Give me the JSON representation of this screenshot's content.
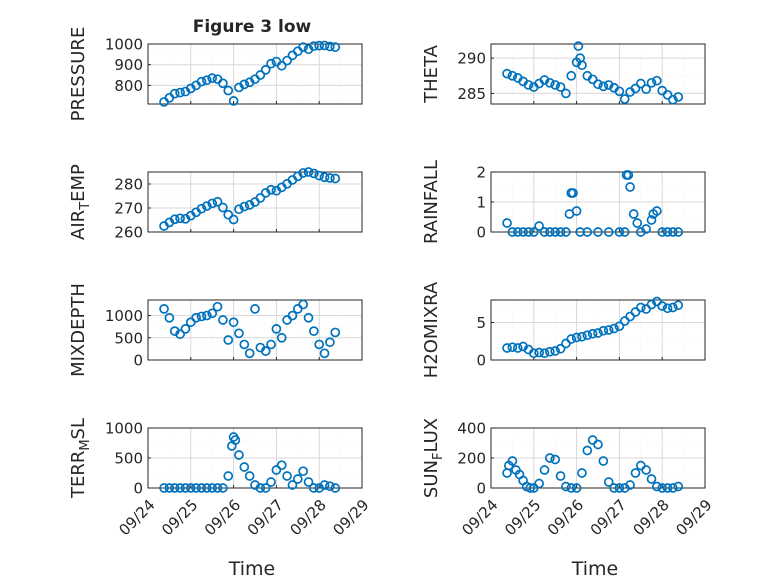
{
  "figure": {
    "title": "Figure 3 low",
    "xlabel": "Time",
    "marker_color": "#0072BD",
    "grid_color": "#d9d9d9",
    "axes_color": "#262626"
  },
  "chart_data": [
    {
      "type": "scatter",
      "name": "pressure",
      "ylabel": "PRESSURE",
      "ylim": [
        710,
        1000
      ],
      "yticks": [
        800,
        900,
        1000
      ],
      "yticklabels": [
        "800",
        "900",
        "1000"
      ],
      "xlim": [
        "09/24 00:00",
        "09/29 00:00"
      ],
      "x": [
        "09/24 09:00",
        "09/24 12:00",
        "09/24 15:00",
        "09/24 18:00",
        "09/24 21:00",
        "09/25 00:00",
        "09/25 03:00",
        "09/25 06:00",
        "09/25 09:00",
        "09/25 12:00",
        "09/25 15:00",
        "09/25 18:00",
        "09/25 21:00",
        "09/26 00:00",
        "09/26 03:00",
        "09/26 06:00",
        "09/26 09:00",
        "09/26 12:00",
        "09/26 15:00",
        "09/26 18:00",
        "09/26 21:00",
        "09/27 00:00",
        "09/27 03:00",
        "09/27 06:00",
        "09/27 09:00",
        "09/27 12:00",
        "09/27 15:00",
        "09/27 18:00",
        "09/27 21:00",
        "09/28 00:00",
        "09/28 03:00",
        "09/28 06:00",
        "09/28 09:00"
      ],
      "y": [
        720,
        740,
        760,
        765,
        770,
        785,
        800,
        818,
        825,
        835,
        830,
        810,
        775,
        725,
        790,
        805,
        815,
        830,
        850,
        875,
        905,
        915,
        895,
        920,
        945,
        965,
        985,
        975,
        990,
        992,
        993,
        988,
        985
      ]
    },
    {
      "type": "scatter",
      "name": "theta",
      "ylabel": "THETA",
      "ylim": [
        283.5,
        292
      ],
      "yticks": [
        285,
        290
      ],
      "yticklabels": [
        "285",
        "290"
      ],
      "xlim": [
        "09/24 00:00",
        "09/29 00:00"
      ],
      "x": [
        "09/24 09:00",
        "09/24 12:00",
        "09/24 15:00",
        "09/24 18:00",
        "09/24 21:00",
        "09/25 00:00",
        "09/25 03:00",
        "09/25 06:00",
        "09/25 09:00",
        "09/25 12:00",
        "09/25 15:00",
        "09/25 18:00",
        "09/25 21:00",
        "09/26 00:00",
        "09/26 01:00",
        "09/26 02:00",
        "09/26 03:00",
        "09/26 06:00",
        "09/26 09:00",
        "09/26 12:00",
        "09/26 15:00",
        "09/26 18:00",
        "09/26 21:00",
        "09/27 00:00",
        "09/27 03:00",
        "09/27 06:00",
        "09/27 09:00",
        "09/27 12:00",
        "09/27 15:00",
        "09/27 18:00",
        "09/27 21:00",
        "09/28 00:00",
        "09/28 03:00",
        "09/28 06:00",
        "09/28 09:00"
      ],
      "y": [
        287.8,
        287.5,
        287.2,
        286.7,
        286.2,
        285.9,
        286.4,
        286.9,
        286.5,
        286.2,
        285.9,
        285.0,
        287.5,
        289.4,
        291.7,
        290.0,
        289.0,
        287.5,
        287.0,
        286.3,
        286.0,
        286.2,
        285.8,
        285.3,
        284.2,
        285.2,
        285.7,
        286.4,
        285.6,
        286.5,
        286.8,
        285.4,
        284.8,
        284.1,
        284.5
      ]
    },
    {
      "type": "scatter",
      "name": "air_temp",
      "ylabel": "AIR_TEMP",
      "ylim": [
        260,
        285
      ],
      "yticks": [
        260,
        270,
        280
      ],
      "yticklabels": [
        "260",
        "270",
        "280"
      ],
      "xlim": [
        "09/24 00:00",
        "09/29 00:00"
      ],
      "x": [
        "09/24 09:00",
        "09/24 12:00",
        "09/24 15:00",
        "09/24 18:00",
        "09/24 21:00",
        "09/25 00:00",
        "09/25 03:00",
        "09/25 06:00",
        "09/25 09:00",
        "09/25 12:00",
        "09/25 15:00",
        "09/25 18:00",
        "09/25 21:00",
        "09/26 00:00",
        "09/26 03:00",
        "09/26 06:00",
        "09/26 09:00",
        "09/26 12:00",
        "09/26 15:00",
        "09/26 18:00",
        "09/26 21:00",
        "09/27 00:00",
        "09/27 03:00",
        "09/27 06:00",
        "09/27 09:00",
        "09/27 12:00",
        "09/27 15:00",
        "09/27 18:00",
        "09/27 21:00",
        "09/28 00:00",
        "09/28 03:00",
        "09/28 06:00",
        "09/28 09:00"
      ],
      "y": [
        262.5,
        264.0,
        265.3,
        265.7,
        265.5,
        266.8,
        268.2,
        269.7,
        270.8,
        271.9,
        272.6,
        270.2,
        267.2,
        265.2,
        269.5,
        270.6,
        271.3,
        272.5,
        274.2,
        276.3,
        277.6,
        277.2,
        278.6,
        280.1,
        281.7,
        283.2,
        284.6,
        285.0,
        284.4,
        283.5,
        282.8,
        282.5,
        282.3
      ]
    },
    {
      "type": "scatter",
      "name": "rainfall",
      "ylabel": "RAINFALL",
      "ylim": [
        0,
        2
      ],
      "yticks": [
        0,
        1,
        2
      ],
      "yticklabels": [
        "0",
        "1",
        "2"
      ],
      "xlim": [
        "09/24 00:00",
        "09/29 00:00"
      ],
      "x": [
        "09/24 09:00",
        "09/24 12:00",
        "09/24 15:00",
        "09/24 18:00",
        "09/24 21:00",
        "09/25 00:00",
        "09/25 03:00",
        "09/25 06:00",
        "09/25 09:00",
        "09/25 12:00",
        "09/25 15:00",
        "09/25 18:00",
        "09/25 20:00",
        "09/25 21:00",
        "09/25 22:00",
        "09/26 00:00",
        "09/26 02:00",
        "09/26 06:00",
        "09/26 12:00",
        "09/26 18:00",
        "09/27 00:00",
        "09/27 03:00",
        "09/27 04:00",
        "09/27 05:00",
        "09/27 06:00",
        "09/27 08:00",
        "09/27 10:00",
        "09/27 12:00",
        "09/27 15:00",
        "09/27 18:00",
        "09/27 19:00",
        "09/27 21:00",
        "09/28 00:00",
        "09/28 03:00",
        "09/28 06:00",
        "09/28 09:00"
      ],
      "y": [
        0.3,
        0.0,
        0.0,
        0.0,
        0.0,
        0.0,
        0.2,
        0.0,
        0.0,
        0.0,
        0.0,
        0.0,
        0.6,
        1.3,
        1.3,
        0.7,
        0.0,
        0.0,
        0.0,
        0.0,
        0.0,
        0.0,
        1.9,
        1.9,
        1.5,
        0.6,
        0.3,
        0.0,
        0.1,
        0.4,
        0.6,
        0.7,
        0.0,
        0.0,
        0.0,
        0.0
      ]
    },
    {
      "type": "scatter",
      "name": "mixdepth",
      "ylabel": "MIXDEPTH",
      "ylim": [
        0,
        1350
      ],
      "yticks": [
        0,
        500,
        1000
      ],
      "yticklabels": [
        "0",
        "500",
        "1000"
      ],
      "xlim": [
        "09/24 00:00",
        "09/29 00:00"
      ],
      "x": [
        "09/24 09:00",
        "09/24 12:00",
        "09/24 15:00",
        "09/24 18:00",
        "09/24 21:00",
        "09/25 00:00",
        "09/25 03:00",
        "09/25 06:00",
        "09/25 09:00",
        "09/25 12:00",
        "09/25 15:00",
        "09/25 18:00",
        "09/25 21:00",
        "09/26 00:00",
        "09/26 03:00",
        "09/26 06:00",
        "09/26 09:00",
        "09/26 12:00",
        "09/26 15:00",
        "09/26 18:00",
        "09/26 21:00",
        "09/27 00:00",
        "09/27 03:00",
        "09/27 06:00",
        "09/27 09:00",
        "09/27 12:00",
        "09/27 15:00",
        "09/27 18:00",
        "09/27 21:00",
        "09/28 00:00",
        "09/28 03:00",
        "09/28 06:00",
        "09/28 09:00"
      ],
      "y": [
        1150,
        950,
        650,
        580,
        700,
        850,
        950,
        980,
        1000,
        1050,
        1200,
        900,
        450,
        850,
        600,
        350,
        150,
        1150,
        280,
        200,
        350,
        700,
        500,
        900,
        1000,
        1150,
        1250,
        950,
        650,
        350,
        150,
        400,
        620
      ]
    },
    {
      "type": "scatter",
      "name": "h2omixra",
      "ylabel": "H2OMIXRA",
      "ylim": [
        0,
        8
      ],
      "yticks": [
        0,
        5
      ],
      "yticklabels": [
        "0",
        "5"
      ],
      "xlim": [
        "09/24 00:00",
        "09/29 00:00"
      ],
      "x": [
        "09/24 09:00",
        "09/24 12:00",
        "09/24 15:00",
        "09/24 18:00",
        "09/24 21:00",
        "09/25 00:00",
        "09/25 03:00",
        "09/25 06:00",
        "09/25 09:00",
        "09/25 12:00",
        "09/25 15:00",
        "09/25 18:00",
        "09/25 21:00",
        "09/26 00:00",
        "09/26 03:00",
        "09/26 06:00",
        "09/26 09:00",
        "09/26 12:00",
        "09/26 15:00",
        "09/26 18:00",
        "09/26 21:00",
        "09/27 00:00",
        "09/27 03:00",
        "09/27 06:00",
        "09/27 09:00",
        "09/27 12:00",
        "09/27 15:00",
        "09/27 18:00",
        "09/27 21:00",
        "09/28 00:00",
        "09/28 03:00",
        "09/28 06:00",
        "09/28 09:00"
      ],
      "y": [
        1.6,
        1.7,
        1.6,
        1.8,
        1.4,
        0.9,
        1.0,
        0.9,
        1.1,
        1.2,
        1.5,
        2.2,
        2.8,
        3.0,
        3.1,
        3.3,
        3.5,
        3.6,
        3.9,
        4.0,
        4.2,
        4.5,
        5.2,
        5.8,
        6.4,
        7.0,
        6.8,
        7.4,
        7.8,
        7.2,
        6.9,
        7.0,
        7.3
      ]
    },
    {
      "type": "scatter",
      "name": "terr_msl",
      "ylabel": "TERR_MSL",
      "ylim": [
        0,
        1000
      ],
      "yticks": [
        0,
        500,
        1000
      ],
      "yticklabels": [
        "0",
        "500",
        "1000"
      ],
      "xlim": [
        "09/24 00:00",
        "09/29 00:00"
      ],
      "x": [
        "09/24 09:00",
        "09/24 12:00",
        "09/24 15:00",
        "09/24 18:00",
        "09/24 21:00",
        "09/25 00:00",
        "09/25 03:00",
        "09/25 06:00",
        "09/25 09:00",
        "09/25 12:00",
        "09/25 15:00",
        "09/25 18:00",
        "09/25 21:00",
        "09/25 23:00",
        "09/26 00:00",
        "09/26 01:00",
        "09/26 03:00",
        "09/26 06:00",
        "09/26 09:00",
        "09/26 12:00",
        "09/26 15:00",
        "09/26 18:00",
        "09/26 21:00",
        "09/27 00:00",
        "09/27 03:00",
        "09/27 06:00",
        "09/27 09:00",
        "09/27 12:00",
        "09/27 15:00",
        "09/27 18:00",
        "09/27 21:00",
        "09/28 00:00",
        "09/28 03:00",
        "09/28 06:00",
        "09/28 09:00"
      ],
      "y": [
        0,
        0,
        0,
        0,
        0,
        0,
        0,
        0,
        0,
        0,
        0,
        0,
        200,
        700,
        850,
        800,
        550,
        350,
        200,
        50,
        0,
        0,
        100,
        300,
        380,
        200,
        50,
        150,
        280,
        100,
        0,
        0,
        50,
        30,
        0
      ]
    },
    {
      "type": "scatter",
      "name": "sun_flux",
      "ylabel": "SUN_FLUX",
      "ylim": [
        0,
        400
      ],
      "yticks": [
        0,
        200,
        400
      ],
      "yticklabels": [
        "0",
        "200",
        "400"
      ],
      "xlim": [
        "09/24 00:00",
        "09/29 00:00"
      ],
      "x": [
        "09/24 09:00",
        "09/24 10:00",
        "09/24 12:00",
        "09/24 14:00",
        "09/24 16:00",
        "09/24 18:00",
        "09/24 20:00",
        "09/24 22:00",
        "09/25 00:00",
        "09/25 03:00",
        "09/25 06:00",
        "09/25 09:00",
        "09/25 12:00",
        "09/25 15:00",
        "09/25 18:00",
        "09/25 21:00",
        "09/26 00:00",
        "09/26 03:00",
        "09/26 06:00",
        "09/26 09:00",
        "09/26 12:00",
        "09/26 15:00",
        "09/26 18:00",
        "09/26 21:00",
        "09/27 00:00",
        "09/27 03:00",
        "09/27 06:00",
        "09/27 09:00",
        "09/27 12:00",
        "09/27 15:00",
        "09/27 18:00",
        "09/27 21:00",
        "09/28 00:00",
        "09/28 03:00",
        "09/28 06:00",
        "09/28 09:00"
      ],
      "y": [
        100,
        150,
        180,
        120,
        90,
        50,
        10,
        0,
        0,
        30,
        120,
        200,
        190,
        80,
        10,
        0,
        0,
        100,
        250,
        320,
        290,
        180,
        40,
        0,
        0,
        0,
        20,
        100,
        150,
        120,
        60,
        10,
        0,
        0,
        0,
        10
      ]
    }
  ],
  "x_axis": {
    "ticks": [
      "09/24 00:00",
      "09/25 00:00",
      "09/26 00:00",
      "09/27 00:00",
      "09/28 00:00",
      "09/29 00:00"
    ],
    "ticklabels": [
      "09/24",
      "09/25",
      "09/26",
      "09/27",
      "09/28",
      "09/29"
    ]
  }
}
